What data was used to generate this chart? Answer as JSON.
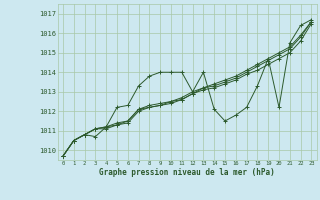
{
  "bg_color": "#cde8f0",
  "grid_color": "#a8c8a8",
  "line_color": "#2d5a2d",
  "ylim": [
    1009.5,
    1017.5
  ],
  "xlim": [
    -0.5,
    23.5
  ],
  "yticks": [
    1010,
    1011,
    1012,
    1013,
    1014,
    1015,
    1016,
    1017
  ],
  "xticks": [
    0,
    1,
    2,
    3,
    4,
    5,
    6,
    7,
    8,
    9,
    10,
    11,
    12,
    13,
    14,
    15,
    16,
    17,
    18,
    19,
    20,
    21,
    22,
    23
  ],
  "xlabel": "Graphe pression niveau de la mer (hPa)",
  "series": [
    [
      1009.7,
      1010.5,
      1010.8,
      1010.7,
      1011.2,
      1012.2,
      1012.3,
      1013.3,
      1013.8,
      1014.0,
      1014.0,
      1014.0,
      1013.0,
      1014.0,
      1012.1,
      1011.5,
      1011.8,
      1012.2,
      1013.3,
      1014.7,
      1012.2,
      1015.5,
      1016.4,
      1016.7
    ],
    [
      1009.7,
      1010.5,
      1010.8,
      1011.1,
      1011.1,
      1011.3,
      1011.4,
      1012.0,
      1012.2,
      1012.3,
      1012.4,
      1012.6,
      1012.9,
      1013.1,
      1013.2,
      1013.4,
      1013.6,
      1013.9,
      1014.1,
      1014.4,
      1014.7,
      1015.0,
      1015.6,
      1016.5
    ],
    [
      1009.7,
      1010.5,
      1010.8,
      1011.1,
      1011.2,
      1011.3,
      1011.5,
      1012.1,
      1012.2,
      1012.3,
      1012.5,
      1012.6,
      1012.9,
      1013.2,
      1013.3,
      1013.5,
      1013.7,
      1014.0,
      1014.3,
      1014.6,
      1014.9,
      1015.2,
      1015.8,
      1016.6
    ],
    [
      1009.7,
      1010.5,
      1010.8,
      1011.1,
      1011.2,
      1011.4,
      1011.5,
      1012.1,
      1012.3,
      1012.4,
      1012.5,
      1012.7,
      1013.0,
      1013.2,
      1013.4,
      1013.6,
      1013.8,
      1014.1,
      1014.4,
      1014.7,
      1015.0,
      1015.3,
      1015.9,
      1016.6
    ]
  ]
}
